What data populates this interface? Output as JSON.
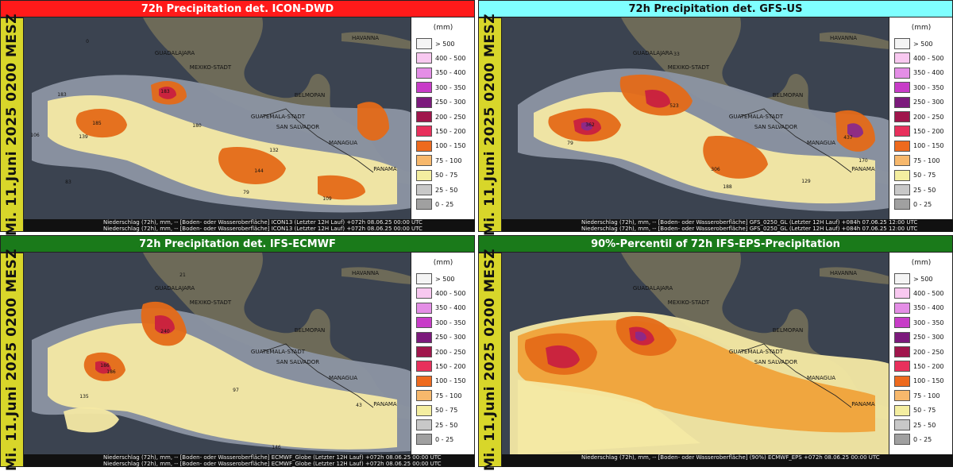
{
  "panels": [
    {
      "title": "72h Precipitation det. ICON-DWD",
      "title_color": "#ff1a1a",
      "date_label": "Mi. 11.Juni 2025 0200 MESZ",
      "footer_lines": [
        "Niederschlag (72h), mm, -- [Boden- oder Wasseroberfläche] ICON13 (Letzter 12H Lauf) +072h  08.06.25 00:00 UTC",
        "Niederschlag (72h), mm, -- [Boden- oder Wasseroberfläche] ICON13 (Letzter 12H Lauf) +072h  08.06.25 00:00 UTC"
      ],
      "values": [
        "183",
        "185",
        "106",
        "139",
        "183",
        "180",
        "132",
        "144",
        "79",
        "109",
        "83",
        "0"
      ]
    },
    {
      "title": "72h Precipitation det. GFS-US",
      "title_color": "#7fffff",
      "date_label": "Mi. 11.Juni 2025 0200 MESZ",
      "footer_lines": [
        "Niederschlag (72h), mm, -- [Boden- oder Wasseroberfläche] GFS_0250_GL (Letzter 12H Lauf) +084h  07.06.25 12:00 UTC",
        "Niederschlag (72h), mm, -- [Boden- oder Wasseroberfläche] GFS_0250_GL (Letzter 12H Lauf) +084h  07.06.25 12:00 UTC"
      ],
      "values": [
        "33",
        "362",
        "523",
        "437",
        "306",
        "188",
        "129",
        "79",
        "170"
      ]
    },
    {
      "title": "72h Precipitation det. IFS-ECMWF",
      "title_color": "#1a7a1a",
      "date_label": "Mi. 11.Juni 2025 0200 MESZ",
      "footer_lines": [
        "Niederschlag (72h), mm, -- [Boden- oder Wasseroberfläche] ECMWF_Globe (Letzter 12H Lauf) +072h  08.06.25 00:00 UTC",
        "Niederschlag (72h), mm, -- [Boden- oder Wasseroberfläche] ECMWF_Globe (Letzter 12H Lauf) +072h  08.06.25 00:00 UTC"
      ],
      "values": [
        "240",
        "186",
        "186",
        "135",
        "97",
        "25",
        "146",
        "43",
        "21"
      ]
    },
    {
      "title": "90%-Percentil of 72h IFS-EPS-Precipitation",
      "title_color": "#1a7a1a",
      "date_label": "Mi. 11.Juni 2025 0200 MESZ",
      "footer_lines": [
        "Niederschlag (72h), mm, -- [Boden- oder Wasseroberfläche] (90%) ECMWF_EPS +072h  08.06.25 00:00 UTC"
      ],
      "values": []
    }
  ],
  "cities": {
    "guadalajara": "GUADALAJARA",
    "mexiko": "MEXIKO-STADT",
    "havanna": "HAVANNA",
    "belmopan": "BELMOPAN",
    "guatemala": "GUATEMALA-STADT",
    "sansalvador": "SAN SALVADOR",
    "managua": "MANAGUA",
    "panama": "PANAMA"
  },
  "legend": {
    "unit": "(mm)",
    "items": [
      {
        "label": "> 500",
        "color": "#f4f4f4"
      },
      {
        "label": "400 - 500",
        "color": "#f8c8f0"
      },
      {
        "label": "350 - 400",
        "color": "#e48ee6"
      },
      {
        "label": "300 - 350",
        "color": "#c83cc8"
      },
      {
        "label": "250 - 300",
        "color": "#7c1a7c"
      },
      {
        "label": "200 - 250",
        "color": "#a0164c"
      },
      {
        "label": "150 - 200",
        "color": "#e8305c"
      },
      {
        "label": "100 - 150",
        "color": "#ee6a1e"
      },
      {
        "label": "75 - 100",
        "color": "#f7b86c"
      },
      {
        "label": "50 - 75",
        "color": "#f4eea0"
      },
      {
        "label": "25 - 50",
        "color": "#c8c8c8"
      },
      {
        "label": "0 - 25",
        "color": "#a0a0a0"
      }
    ]
  },
  "map_colors": {
    "ocean": "#3b4350",
    "land": "#6d6a58",
    "light_rain": "#8c95a3",
    "pale": "#f4e9a4",
    "orange": "#f0a23a",
    "dark_orange": "#e46a18",
    "red": "#c82040",
    "purple": "#8a2a8a"
  }
}
